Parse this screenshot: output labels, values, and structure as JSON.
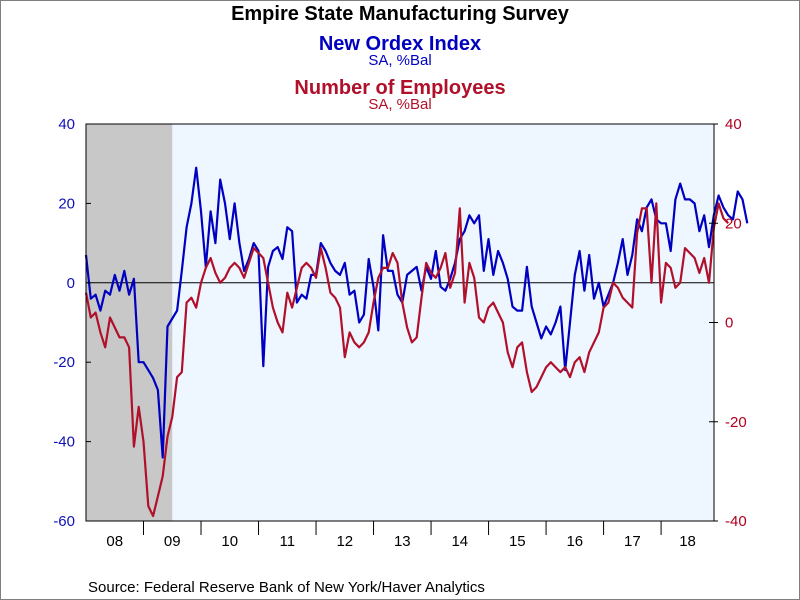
{
  "chart_data": {
    "type": "line",
    "title": "Empire State Manufacturing Survey",
    "source": "Source:  Federal Reserve Bank of New York/Haver Analytics",
    "x_tick_labels": [
      "08",
      "09",
      "10",
      "11",
      "12",
      "13",
      "14",
      "15",
      "16",
      "17",
      "18"
    ],
    "x_range": [
      2008.0,
      2018.92
    ],
    "recession": {
      "start": 2008.0,
      "end": 2009.5,
      "color": "#c8c8c8"
    },
    "plot_background": "#eef6ff",
    "zero_line": true,
    "y_left": {
      "ylim": [
        -60,
        40
      ],
      "ticks": [
        "40",
        "20",
        "0",
        "-20",
        "-40",
        "-60"
      ],
      "color": "#1010b8"
    },
    "y_right": {
      "ylim": [
        -40,
        40
      ],
      "ticks": [
        "40",
        "20",
        "0",
        "-20",
        "-40"
      ],
      "color": "#b00020"
    },
    "series": [
      {
        "name": "New Ordex Index",
        "unit": "SA, %Bal",
        "axis": "left",
        "color": "#0000c0",
        "start": 2008.0,
        "step": 0.08333,
        "values": [
          7,
          -4,
          -3,
          -7,
          -2,
          -3,
          2,
          -2,
          3,
          -3,
          1,
          -20,
          -20,
          -22,
          -24,
          -27,
          -44,
          -11,
          -9,
          -7,
          3,
          14,
          20,
          29,
          18,
          4,
          18,
          10,
          26,
          20,
          11,
          20,
          10,
          3,
          6,
          10,
          8,
          -21,
          4,
          8,
          9,
          6,
          14,
          13,
          -5,
          -3,
          -4,
          2,
          2,
          10,
          8,
          5,
          3,
          2,
          5,
          -3,
          -2,
          -10,
          -8,
          6,
          -1,
          -12,
          12,
          3,
          3,
          -3,
          -5,
          2,
          3,
          4,
          -2,
          4,
          1,
          8,
          -1,
          -2,
          1,
          5,
          11,
          13,
          17,
          15,
          17,
          3,
          11,
          2,
          8,
          5,
          1,
          -6,
          -7,
          -7,
          4,
          -6,
          -10,
          -14,
          -11,
          -13,
          -10,
          -6,
          -22,
          -10,
          2,
          8,
          -2,
          7,
          -4,
          0,
          -6,
          -3,
          0,
          5,
          11,
          2,
          7,
          16,
          13,
          19,
          21,
          16,
          15,
          15,
          8,
          21,
          25,
          21,
          21,
          20,
          13,
          17,
          9,
          17,
          22,
          19,
          17,
          16,
          23,
          21,
          15
        ]
      },
      {
        "name": "Number of Employees",
        "unit": "SA, %Bal",
        "axis": "right",
        "color": "#b0102a",
        "start": 2008.0,
        "step": 0.08333,
        "values": [
          6,
          1,
          2,
          -2,
          -5,
          1,
          -1,
          -3,
          -3,
          -5,
          -25,
          -17,
          -24,
          -37,
          -39,
          -35,
          -31,
          -23,
          -19,
          -11,
          -10,
          4,
          5,
          3,
          8,
          11,
          13,
          10,
          8,
          9,
          11,
          12,
          11,
          9,
          12,
          15,
          14,
          13,
          8,
          3,
          0,
          -2,
          6,
          3,
          7,
          11,
          12,
          11,
          9,
          15,
          11,
          6,
          5,
          3,
          -7,
          -2,
          -4,
          -5,
          -4,
          -2,
          4,
          9,
          11,
          11,
          14,
          12,
          4,
          -1,
          -4,
          -3,
          5,
          12,
          10,
          9,
          11,
          14,
          7,
          10,
          23,
          4,
          12,
          9,
          1,
          0,
          3,
          4,
          2,
          0,
          -6,
          -9,
          -5,
          -4,
          -10,
          -14,
          -13,
          -11,
          -9,
          -8,
          -9,
          -10,
          -9,
          -11,
          -8,
          -7,
          -10,
          -6,
          -4,
          -2,
          3,
          4,
          8,
          7,
          5,
          4,
          3,
          18,
          23,
          23,
          8,
          24,
          4,
          12,
          11,
          7,
          8,
          15,
          14,
          13,
          10,
          13,
          8,
          19,
          24,
          21,
          20
        ]
      }
    ]
  }
}
